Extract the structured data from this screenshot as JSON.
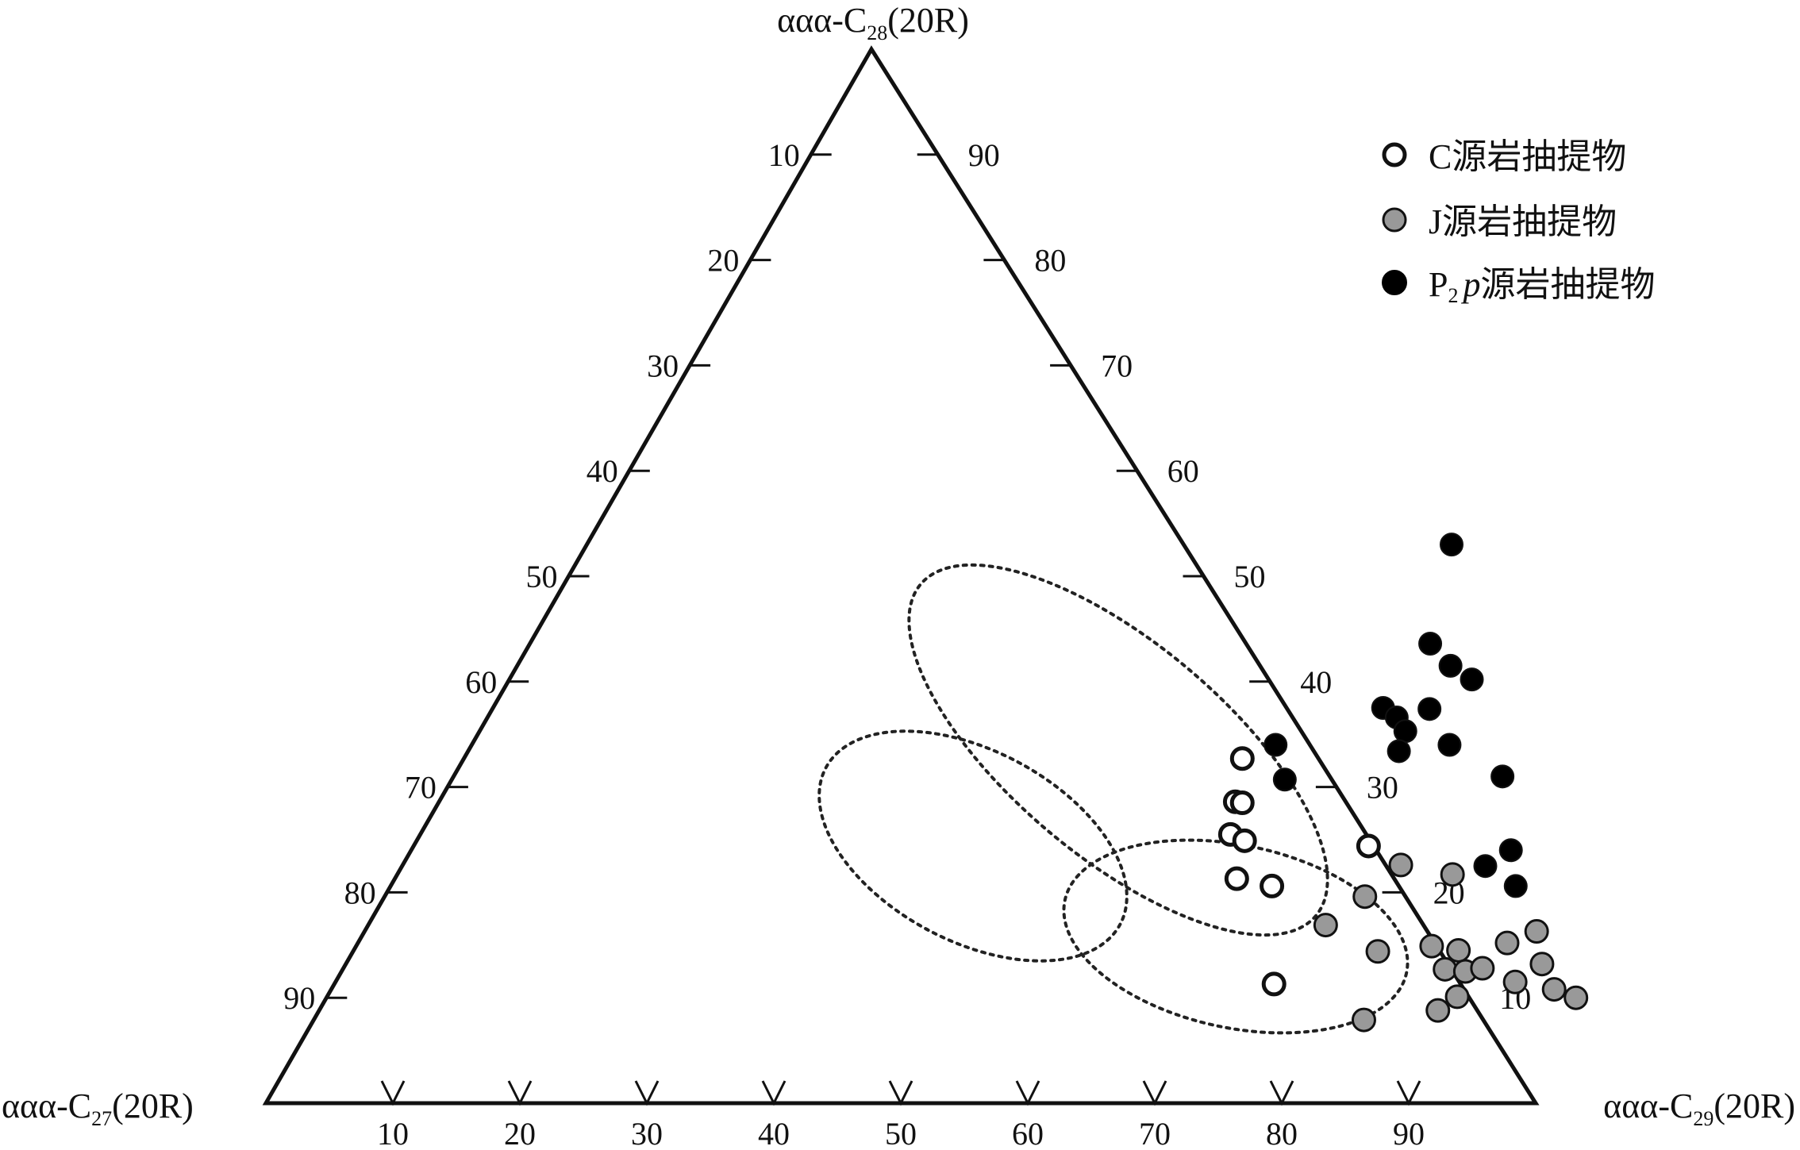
{
  "chart_data": {
    "type": "scatter",
    "subtype": "ternary",
    "vertices": {
      "top": {
        "prefix": "ααα-C",
        "sub": "28",
        "suffix": "(20R)"
      },
      "left": {
        "prefix": "ααα-C",
        "sub": "27",
        "suffix": "(20R)"
      },
      "right": {
        "prefix": "ααα-C",
        "sub": "29",
        "suffix": "(20R)"
      }
    },
    "tick_values": [
      10,
      20,
      30,
      40,
      50,
      60,
      70,
      80,
      90
    ],
    "legend_position": "top-right",
    "grid": false,
    "series": [
      {
        "name": "C源岩抽提物",
        "label_parts": {
          "main": "C源岩抽提物"
        },
        "marker": "open-circle",
        "color": "#ffffff",
        "points": [
          {
            "C29": 62.7,
            "C28": 28.6
          },
          {
            "C29": 61.3,
            "C28": 32.7
          },
          {
            "C29": 63.8,
            "C28": 25.5
          },
          {
            "C29": 65.2,
            "C28": 24.9
          },
          {
            "C29": 66.3,
            "C28": 21.3
          },
          {
            "C29": 69.4,
            "C28": 20.6
          },
          {
            "C29": 75.2,
            "C28": 24.4
          },
          {
            "C29": 74.0,
            "C28": 11.3
          },
          {
            "C29": 63.3,
            "C28": 28.5
          }
        ]
      },
      {
        "name": "J源岩抽提物",
        "label_parts": {
          "main": "J源岩抽提物"
        },
        "marker": "filled-circle",
        "color": "#999999",
        "points": [
          {
            "C29": 78.6,
            "C28": 22.6
          },
          {
            "C29": 83.1,
            "C28": 21.7
          },
          {
            "C29": 77.2,
            "C28": 19.6
          },
          {
            "C29": 75.4,
            "C28": 16.9
          },
          {
            "C29": 80.7,
            "C28": 14.4
          },
          {
            "C29": 84.7,
            "C28": 14.9
          },
          {
            "C29": 87.0,
            "C28": 14.5
          },
          {
            "C29": 92.3,
            "C28": 16.3
          },
          {
            "C29": 90.5,
            "C28": 15.2
          },
          {
            "C29": 86.8,
            "C28": 12.7
          },
          {
            "C29": 88.5,
            "C28": 12.5
          },
          {
            "C29": 89.7,
            "C28": 12.8
          },
          {
            "C29": 89.0,
            "C28": 10.1
          },
          {
            "C29": 92.9,
            "C28": 11.5
          },
          {
            "C29": 94.2,
            "C28": 13.2
          },
          {
            "C29": 96.3,
            "C28": 10.8
          },
          {
            "C29": 98.4,
            "C28": 10.0
          },
          {
            "C29": 88.1,
            "C28": 8.8
          },
          {
            "C29": 82.7,
            "C28": 7.9
          }
        ]
      },
      {
        "name": "P₂p源岩抽提物",
        "label_parts": {
          "main": "P",
          "sub": "2",
          "italic": "p",
          "rest": "源岩抽提物"
        },
        "marker": "filled-circle",
        "color": "#000000",
        "points": [
          {
            "C29": 68.1,
            "C28": 53.0
          },
          {
            "C29": 70.9,
            "C28": 43.6
          },
          {
            "C29": 73.5,
            "C28": 41.5
          },
          {
            "C29": 75.8,
            "C28": 40.2
          },
          {
            "C29": 70.1,
            "C28": 37.5
          },
          {
            "C29": 71.6,
            "C28": 36.6
          },
          {
            "C29": 73.8,
            "C28": 37.4
          },
          {
            "C29": 72.9,
            "C28": 35.3
          },
          {
            "C29": 73.3,
            "C28": 33.4
          },
          {
            "C29": 77.0,
            "C28": 34.0
          },
          {
            "C29": 82.6,
            "C28": 31.0
          },
          {
            "C29": 63.3,
            "C28": 34.0
          },
          {
            "C29": 65.6,
            "C28": 30.7
          },
          {
            "C29": 86.6,
            "C28": 24.0
          },
          {
            "C29": 85.3,
            "C28": 22.5
          },
          {
            "C29": 88.6,
            "C28": 20.6
          }
        ]
      }
    ],
    "groups_outlined": true
  }
}
